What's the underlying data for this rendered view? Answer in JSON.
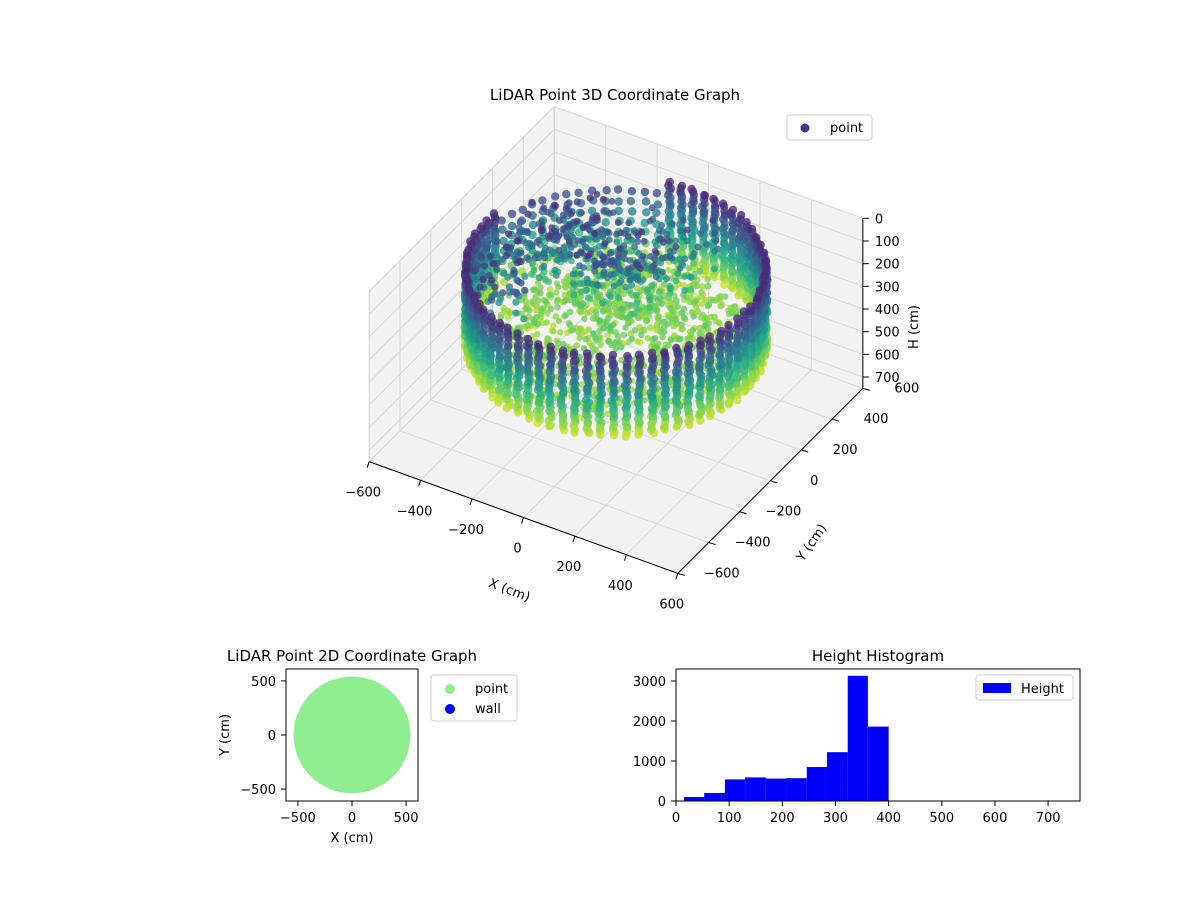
{
  "figure": {
    "colors": {
      "viridis_dark": "#440154",
      "viridis_mid": "#21918c",
      "viridis_light": "#bddf26",
      "legend_point_3d": "#3b3a8c",
      "point_2d": "#90ee90",
      "wall_2d": "#0000ff",
      "hist_bar": "#0000ff",
      "pane": "#f2f2f2",
      "grid": "#d6d6d6"
    }
  },
  "chart_data": [
    {
      "type": "scatter",
      "projection": "3d",
      "title": "LiDAR Point 3D Coordinate Graph",
      "xlabel": "X (cm)",
      "ylabel": "Y (cm)",
      "zlabel": "H (cm)",
      "xlim": [
        -600,
        600
      ],
      "ylim": [
        -600,
        600
      ],
      "zlim": [
        0,
        750
      ],
      "z_inverted": true,
      "xticks": [
        "−600",
        "−400",
        "−200",
        "0",
        "200",
        "400",
        "600"
      ],
      "yticks": [
        "−600",
        "−400",
        "−200",
        "0",
        "200",
        "400",
        "600"
      ],
      "zticks": [
        "0",
        "100",
        "200",
        "300",
        "400",
        "500",
        "600",
        "700"
      ],
      "colormap": "viridis",
      "legend": {
        "entries": [
          "point"
        ],
        "placement": "top-right"
      },
      "structure": {
        "ring_radius": 500,
        "ring_segments": 72,
        "ring_height_range": [
          50,
          400
        ],
        "floor_height": 400
      }
    },
    {
      "type": "scatter",
      "title": "LiDAR Point 2D Coordinate Graph",
      "xlabel": "X (cm)",
      "ylabel": "Y (cm)",
      "xlim": [
        -610,
        610
      ],
      "ylim": [
        -610,
        610
      ],
      "xticks": [
        -500,
        0,
        500
      ],
      "yticks": [
        -500,
        0,
        500
      ],
      "series": [
        {
          "name": "point",
          "shape": "filled disc",
          "center": [
            0,
            0
          ],
          "radius": 540
        },
        {
          "name": "wall",
          "values": []
        }
      ],
      "legend": {
        "entries": [
          "point",
          "wall"
        ],
        "placement": "outside-right"
      }
    },
    {
      "type": "bar",
      "subtype": "histogram",
      "title": "Height Histogram",
      "xlim": [
        0,
        760
      ],
      "ylim": [
        0,
        3300
      ],
      "xticks": [
        0,
        100,
        200,
        300,
        400,
        500,
        600,
        700
      ],
      "yticks": [
        0,
        1000,
        2000,
        3000
      ],
      "bin_edges": [
        15,
        53,
        92,
        130,
        169,
        207,
        246,
        284,
        323,
        361,
        400
      ],
      "values": [
        100,
        200,
        540,
        590,
        560,
        570,
        850,
        1220,
        3130,
        1860
      ],
      "legend": {
        "entries": [
          "Height"
        ],
        "placement": "top-right"
      }
    }
  ]
}
